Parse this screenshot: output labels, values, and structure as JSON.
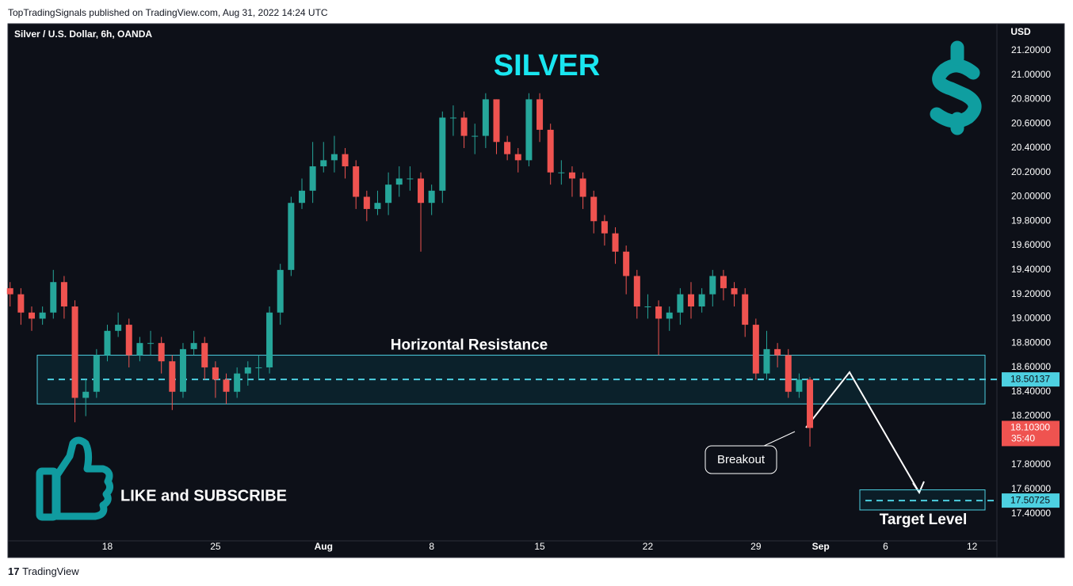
{
  "header": "TopTradingSignals published on TradingView.com, Aug 31, 2022 14:24 UTC",
  "footer": "TradingView",
  "chart_data": {
    "type": "candlestick",
    "title": "Silver / U.S. Dollar, 6h, OANDA",
    "heading": "SILVER",
    "y_axis_label": "USD",
    "up_color": "#26a69a",
    "down_color": "#ef5350",
    "open": [
      19.25,
      19.2,
      19.05,
      19.0,
      19.05,
      19.3,
      19.1,
      18.35,
      18.4,
      18.7,
      18.9,
      18.95,
      18.7,
      18.8,
      18.8,
      18.65,
      18.4,
      18.75,
      18.8,
      18.6,
      18.5,
      18.4,
      18.55,
      18.6,
      18.6,
      19.05,
      19.4,
      19.95,
      20.05,
      20.25,
      20.3,
      20.35,
      20.25,
      20.0,
      19.9,
      19.95,
      20.1,
      20.15,
      20.15,
      19.95,
      20.05,
      20.65,
      20.65,
      20.5,
      20.5,
      20.8,
      20.45,
      20.35,
      20.3,
      20.8,
      20.55,
      20.2,
      20.2,
      20.15,
      20.0,
      19.8,
      19.7,
      19.55,
      19.35,
      19.1,
      19.1,
      19.0,
      19.05,
      19.2,
      19.1,
      19.2,
      19.35,
      19.25,
      19.2,
      18.95,
      18.55,
      18.75,
      18.7,
      18.4,
      18.5
    ],
    "high": [
      19.3,
      19.25,
      19.1,
      19.1,
      19.4,
      19.35,
      19.15,
      18.5,
      18.75,
      18.95,
      19.05,
      19.0,
      18.85,
      18.9,
      18.85,
      18.7,
      18.8,
      18.9,
      18.85,
      18.65,
      18.55,
      18.6,
      18.65,
      18.7,
      19.1,
      19.45,
      20.0,
      20.15,
      20.45,
      20.45,
      20.5,
      20.4,
      20.3,
      20.05,
      20.05,
      20.2,
      20.25,
      20.25,
      20.2,
      20.1,
      20.7,
      20.75,
      20.7,
      20.6,
      20.85,
      20.8,
      20.5,
      20.4,
      20.85,
      20.85,
      20.6,
      20.3,
      20.25,
      20.2,
      20.05,
      19.85,
      19.75,
      19.6,
      19.4,
      19.2,
      19.15,
      19.1,
      19.25,
      19.3,
      19.25,
      19.4,
      19.4,
      19.3,
      19.25,
      19.0,
      18.9,
      18.8,
      18.75,
      18.55,
      18.52
    ],
    "low": [
      19.1,
      18.95,
      18.9,
      18.95,
      19.0,
      19.0,
      18.15,
      18.2,
      18.35,
      18.65,
      18.85,
      18.6,
      18.65,
      18.7,
      18.55,
      18.25,
      18.35,
      18.7,
      18.5,
      18.35,
      18.3,
      18.35,
      18.45,
      18.5,
      18.55,
      18.95,
      19.35,
      19.9,
      19.95,
      20.2,
      20.2,
      20.15,
      19.9,
      19.8,
      19.85,
      19.85,
      20.0,
      20.05,
      19.55,
      19.85,
      19.95,
      20.5,
      20.4,
      20.35,
      20.4,
      20.35,
      20.3,
      20.2,
      20.25,
      20.45,
      20.1,
      20.1,
      20.0,
      19.9,
      19.7,
      19.6,
      19.45,
      19.2,
      19.0,
      19.0,
      18.7,
      18.9,
      18.95,
      19.0,
      19.05,
      19.1,
      19.15,
      19.1,
      18.85,
      18.5,
      18.5,
      18.6,
      18.35,
      18.35,
      17.95
    ],
    "close": [
      19.2,
      19.05,
      19.0,
      19.05,
      19.3,
      19.1,
      18.35,
      18.4,
      18.7,
      18.9,
      18.95,
      18.7,
      18.8,
      18.8,
      18.65,
      18.4,
      18.75,
      18.8,
      18.6,
      18.5,
      18.4,
      18.55,
      18.6,
      18.6,
      19.05,
      19.4,
      19.95,
      20.05,
      20.25,
      20.3,
      20.35,
      20.25,
      20.0,
      19.9,
      19.95,
      20.1,
      20.15,
      20.15,
      19.95,
      20.05,
      20.65,
      20.65,
      20.5,
      20.5,
      20.8,
      20.45,
      20.35,
      20.3,
      20.8,
      20.55,
      20.2,
      20.2,
      20.15,
      20.0,
      19.8,
      19.7,
      19.55,
      19.35,
      19.1,
      19.1,
      19.0,
      19.05,
      19.2,
      19.1,
      19.2,
      19.35,
      19.25,
      19.2,
      18.95,
      18.55,
      18.75,
      18.7,
      18.4,
      18.5,
      18.103
    ],
    "xlim": [
      -0.2,
      91.3
    ],
    "xticks": [
      {
        "value": 9,
        "label": "18"
      },
      {
        "value": 19,
        "label": "25"
      },
      {
        "value": 29,
        "label": "Aug"
      },
      {
        "value": 39,
        "label": "8"
      },
      {
        "value": 49,
        "label": "15"
      },
      {
        "value": 59,
        "label": "22"
      },
      {
        "value": 69,
        "label": "29"
      },
      {
        "value": 75,
        "label": "Sep"
      },
      {
        "value": 81,
        "label": "6"
      },
      {
        "value": 89,
        "label": "12"
      }
    ],
    "ylim": [
      17.04,
      21.42
    ],
    "yticks": [
      {
        "value": 17.4,
        "label": "17.40000"
      },
      {
        "value": 17.6,
        "label": "17.60000"
      },
      {
        "value": 17.8,
        "label": "17.80000"
      },
      {
        "value": 18.0,
        "label": "18.00000"
      },
      {
        "value": 18.2,
        "label": "18.20000"
      },
      {
        "value": 18.4,
        "label": "18.40000"
      },
      {
        "value": 18.6,
        "label": "18.60000"
      },
      {
        "value": 18.8,
        "label": "18.80000"
      },
      {
        "value": 19.0,
        "label": "19.00000"
      },
      {
        "value": 19.2,
        "label": "19.20000"
      },
      {
        "value": 19.4,
        "label": "19.40000"
      },
      {
        "value": 19.6,
        "label": "19.60000"
      },
      {
        "value": 19.8,
        "label": "19.80000"
      },
      {
        "value": 20.0,
        "label": "20.00000"
      },
      {
        "value": 20.2,
        "label": "20.20000"
      },
      {
        "value": 20.4,
        "label": "20.40000"
      },
      {
        "value": 20.6,
        "label": "20.60000"
      },
      {
        "value": 20.8,
        "label": "20.80000"
      },
      {
        "value": 21.0,
        "label": "21.00000"
      },
      {
        "value": 21.2,
        "label": "21.20000"
      }
    ],
    "resistance_zone": {
      "label": "Horizontal Resistance",
      "low": 18.3,
      "high": 18.7,
      "level": 18.50137
    },
    "target_zone": {
      "label": "Target Level",
      "low": 17.43,
      "high": 17.595,
      "level": {
        "value": 17.50725,
        "label": "17.50725"
      }
    },
    "last_price": {
      "value": 18.103,
      "label": "18.10300",
      "countdown": "35:40"
    },
    "callout": "Breakout",
    "call_to_action": "LIKE and SUBSCRIBE"
  }
}
